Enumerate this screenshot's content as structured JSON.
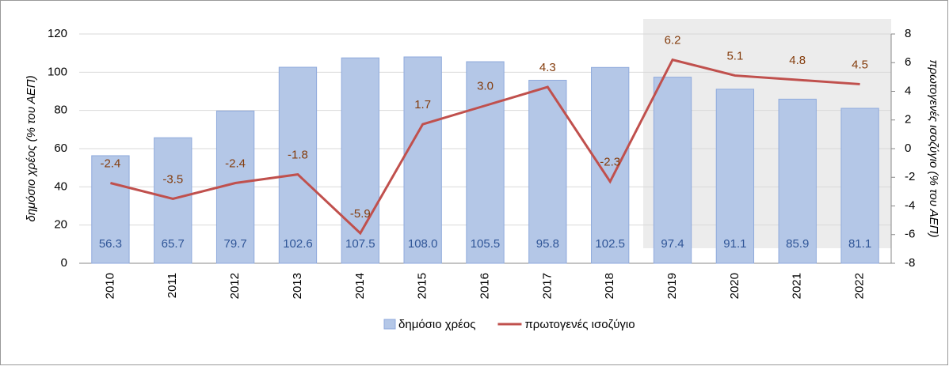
{
  "chart_data": {
    "type": "bar_line",
    "categories": [
      "2010",
      "2011",
      "2012",
      "2013",
      "2014",
      "2015",
      "2016",
      "2017",
      "2018",
      "2019",
      "2020",
      "2021",
      "2022"
    ],
    "series": [
      {
        "name": "δημόσιο χρέος",
        "type": "bar",
        "color": "#b4c7e7",
        "values": [
          56.3,
          65.7,
          79.7,
          102.6,
          107.5,
          108.0,
          105.5,
          95.8,
          102.5,
          97.4,
          91.1,
          85.9,
          81.1
        ],
        "value_labels": [
          "56.3",
          "65.7",
          "79.7",
          "102.6",
          "107.5",
          "108.0",
          "105.5",
          "95.8",
          "102.5",
          "97.4",
          "91.1",
          "85.9",
          "81.1"
        ]
      },
      {
        "name": "πρωτογενές ισοζύγιο",
        "type": "line",
        "axis": "y2",
        "color": "#c0504d",
        "values": [
          -2.4,
          -3.5,
          -2.4,
          -1.8,
          -5.9,
          1.7,
          3.0,
          4.3,
          -2.3,
          6.2,
          5.1,
          4.8,
          4.5
        ],
        "value_labels": [
          "-2.4",
          "-3.5",
          "-2.4",
          "-1.8",
          "-5.9",
          "1.7",
          "3.0",
          "4.3",
          "-2.3",
          "6.2",
          "5.1",
          "4.8",
          "4.5"
        ]
      }
    ],
    "ylabel": "δημόσιο χρέος (% του ΑΕΠ)",
    "y2label": "πρωτογενές ισοζύγιο  (% του ΑΕΠ)",
    "ylim": [
      0,
      120
    ],
    "yticks": [
      0,
      20,
      40,
      60,
      80,
      100,
      120
    ],
    "y2lim": [
      -8,
      8
    ],
    "y2ticks": [
      -8,
      -6,
      -4,
      -2,
      0,
      2,
      4,
      6,
      8
    ],
    "grid": true,
    "legend": "bottom"
  }
}
